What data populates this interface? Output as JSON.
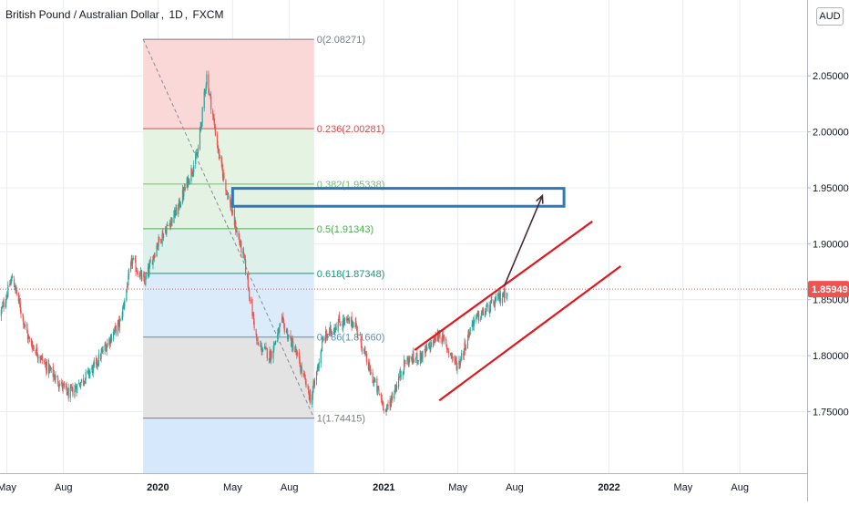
{
  "header": {
    "symbol": "British Pound / Australian Dollar",
    "interval": "1D",
    "exchange": "FXCM",
    "currency": "AUD",
    "edge_tick": "2"
  },
  "colors": {
    "up": "#26a69a",
    "down": "#ef5350",
    "channel": "#e0171c",
    "box": "#2e79b9",
    "arrow": "#4a2b36",
    "price_line": "#ef5350",
    "grid": "#e9ecf1"
  },
  "chart_data": {
    "type": "candlestick",
    "y_range": [
      1.695,
      2.095
    ],
    "y_ticks": [
      "2.05000",
      "2.00000",
      "1.95000",
      "1.90000",
      "1.85000",
      "1.80000",
      "1.75000"
    ],
    "y_tick_values": [
      2.05,
      2.0,
      1.95,
      1.9,
      1.85,
      1.8,
      1.75
    ],
    "x_range": [
      "2019-04-20",
      "2022-11-18"
    ],
    "x_ticks": [
      {
        "date": "2019-05-01",
        "label": "May",
        "bold": false
      },
      {
        "date": "2019-08-01",
        "label": "Aug",
        "bold": false
      },
      {
        "date": "2020-01-01",
        "label": "2020",
        "bold": true
      },
      {
        "date": "2020-05-01",
        "label": "May",
        "bold": false
      },
      {
        "date": "2020-08-01",
        "label": "Aug",
        "bold": false
      },
      {
        "date": "2021-01-01",
        "label": "2021",
        "bold": true
      },
      {
        "date": "2021-05-01",
        "label": "May",
        "bold": false
      },
      {
        "date": "2021-08-01",
        "label": "Aug",
        "bold": false
      },
      {
        "date": "2022-01-01",
        "label": "2022",
        "bold": true
      },
      {
        "date": "2022-05-01",
        "label": "May",
        "bold": false
      },
      {
        "date": "2022-08-01",
        "label": "Aug",
        "bold": false
      }
    ],
    "last_price": 1.85949,
    "last_price_label": "1.85949",
    "price_path": [
      {
        "date": "2019-04-20",
        "price": 1.836
      },
      {
        "date": "2019-05-10",
        "price": 1.87
      },
      {
        "date": "2019-06-05",
        "price": 1.815
      },
      {
        "date": "2019-07-05",
        "price": 1.79
      },
      {
        "date": "2019-08-10",
        "price": 1.765
      },
      {
        "date": "2019-09-20",
        "price": 1.79
      },
      {
        "date": "2019-10-15",
        "price": 1.815
      },
      {
        "date": "2019-11-01",
        "price": 1.83
      },
      {
        "date": "2019-11-20",
        "price": 1.885
      },
      {
        "date": "2019-12-10",
        "price": 1.865
      },
      {
        "date": "2019-12-31",
        "price": 1.9
      },
      {
        "date": "2020-02-01",
        "price": 1.93
      },
      {
        "date": "2020-03-05",
        "price": 1.98
      },
      {
        "date": "2020-03-20",
        "price": 2.05
      },
      {
        "date": "2020-04-10",
        "price": 1.975
      },
      {
        "date": "2020-05-01",
        "price": 1.925
      },
      {
        "date": "2020-05-20",
        "price": 1.885
      },
      {
        "date": "2020-06-10",
        "price": 1.81
      },
      {
        "date": "2020-07-01",
        "price": 1.8
      },
      {
        "date": "2020-07-20",
        "price": 1.83
      },
      {
        "date": "2020-08-10",
        "price": 1.805
      },
      {
        "date": "2020-09-05",
        "price": 1.76
      },
      {
        "date": "2020-09-25",
        "price": 1.815
      },
      {
        "date": "2020-10-20",
        "price": 1.83
      },
      {
        "date": "2020-11-15",
        "price": 1.83
      },
      {
        "date": "2020-12-10",
        "price": 1.785
      },
      {
        "date": "2021-01-05",
        "price": 1.75
      },
      {
        "date": "2021-02-05",
        "price": 1.795
      },
      {
        "date": "2021-03-05",
        "price": 1.8
      },
      {
        "date": "2021-04-01",
        "price": 1.82
      },
      {
        "date": "2021-05-01",
        "price": 1.79
      },
      {
        "date": "2021-05-25",
        "price": 1.83
      },
      {
        "date": "2021-06-25",
        "price": 1.845
      },
      {
        "date": "2021-07-20",
        "price": 1.858
      }
    ],
    "fibonacci": {
      "date_range": [
        "2019-12-08",
        "2020-09-10"
      ],
      "levels": [
        {
          "ratio": 0,
          "price": 2.08271,
          "label": "0(2.08271)",
          "color": "#7a7d87",
          "fill": null
        },
        {
          "ratio": 0.236,
          "price": 2.00281,
          "label": "0.236(2.00281)",
          "color": "#e04848",
          "fill": "#fbd8d8"
        },
        {
          "ratio": 0.382,
          "price": 1.95338,
          "label": "0.382(1.95338)",
          "color": "#6fbf73",
          "fill": "#e5f3e3"
        },
        {
          "ratio": 0.5,
          "price": 1.91343,
          "label": "0.5(1.91343)",
          "color": "#4caf50",
          "fill": "#e3f2e2"
        },
        {
          "ratio": 0.618,
          "price": 1.87348,
          "label": "0.618(1.87348)",
          "color": "#14997a",
          "fill": "#ddf0ea"
        },
        {
          "ratio": 0.786,
          "price": 1.8166,
          "label": "0.786(1.81660)",
          "color": "#5a8fba",
          "fill": "#dcebfa"
        },
        {
          "ratio": 1,
          "price": 1.74415,
          "label": "1(1.74415)",
          "color": "#7a7d87",
          "fill": "#e3e3e3"
        }
      ],
      "lower_extension_fill": "#d6e9fc",
      "lower_extension_price": 1.695
    },
    "annotations": {
      "trend_line": {
        "from": {
          "date": "2019-12-08",
          "price": 2.08271
        },
        "to": {
          "date": "2020-09-10",
          "price": 1.74415
        }
      },
      "target_box": {
        "from_date": "2020-05-01",
        "to_date": "2021-10-20",
        "high": 1.9495,
        "low": 1.9335
      },
      "channel_upper": {
        "from": {
          "date": "2021-02-20",
          "price": 1.805
        },
        "to": {
          "date": "2021-12-05",
          "price": 1.92
        }
      },
      "channel_lower": {
        "from": {
          "date": "2021-04-01",
          "price": 1.76
        },
        "to": {
          "date": "2022-01-20",
          "price": 1.88
        }
      },
      "projection_arrow": {
        "from": {
          "date": "2021-07-15",
          "price": 1.862
        },
        "to": {
          "date": "2021-09-15",
          "price": 1.943
        }
      }
    }
  }
}
